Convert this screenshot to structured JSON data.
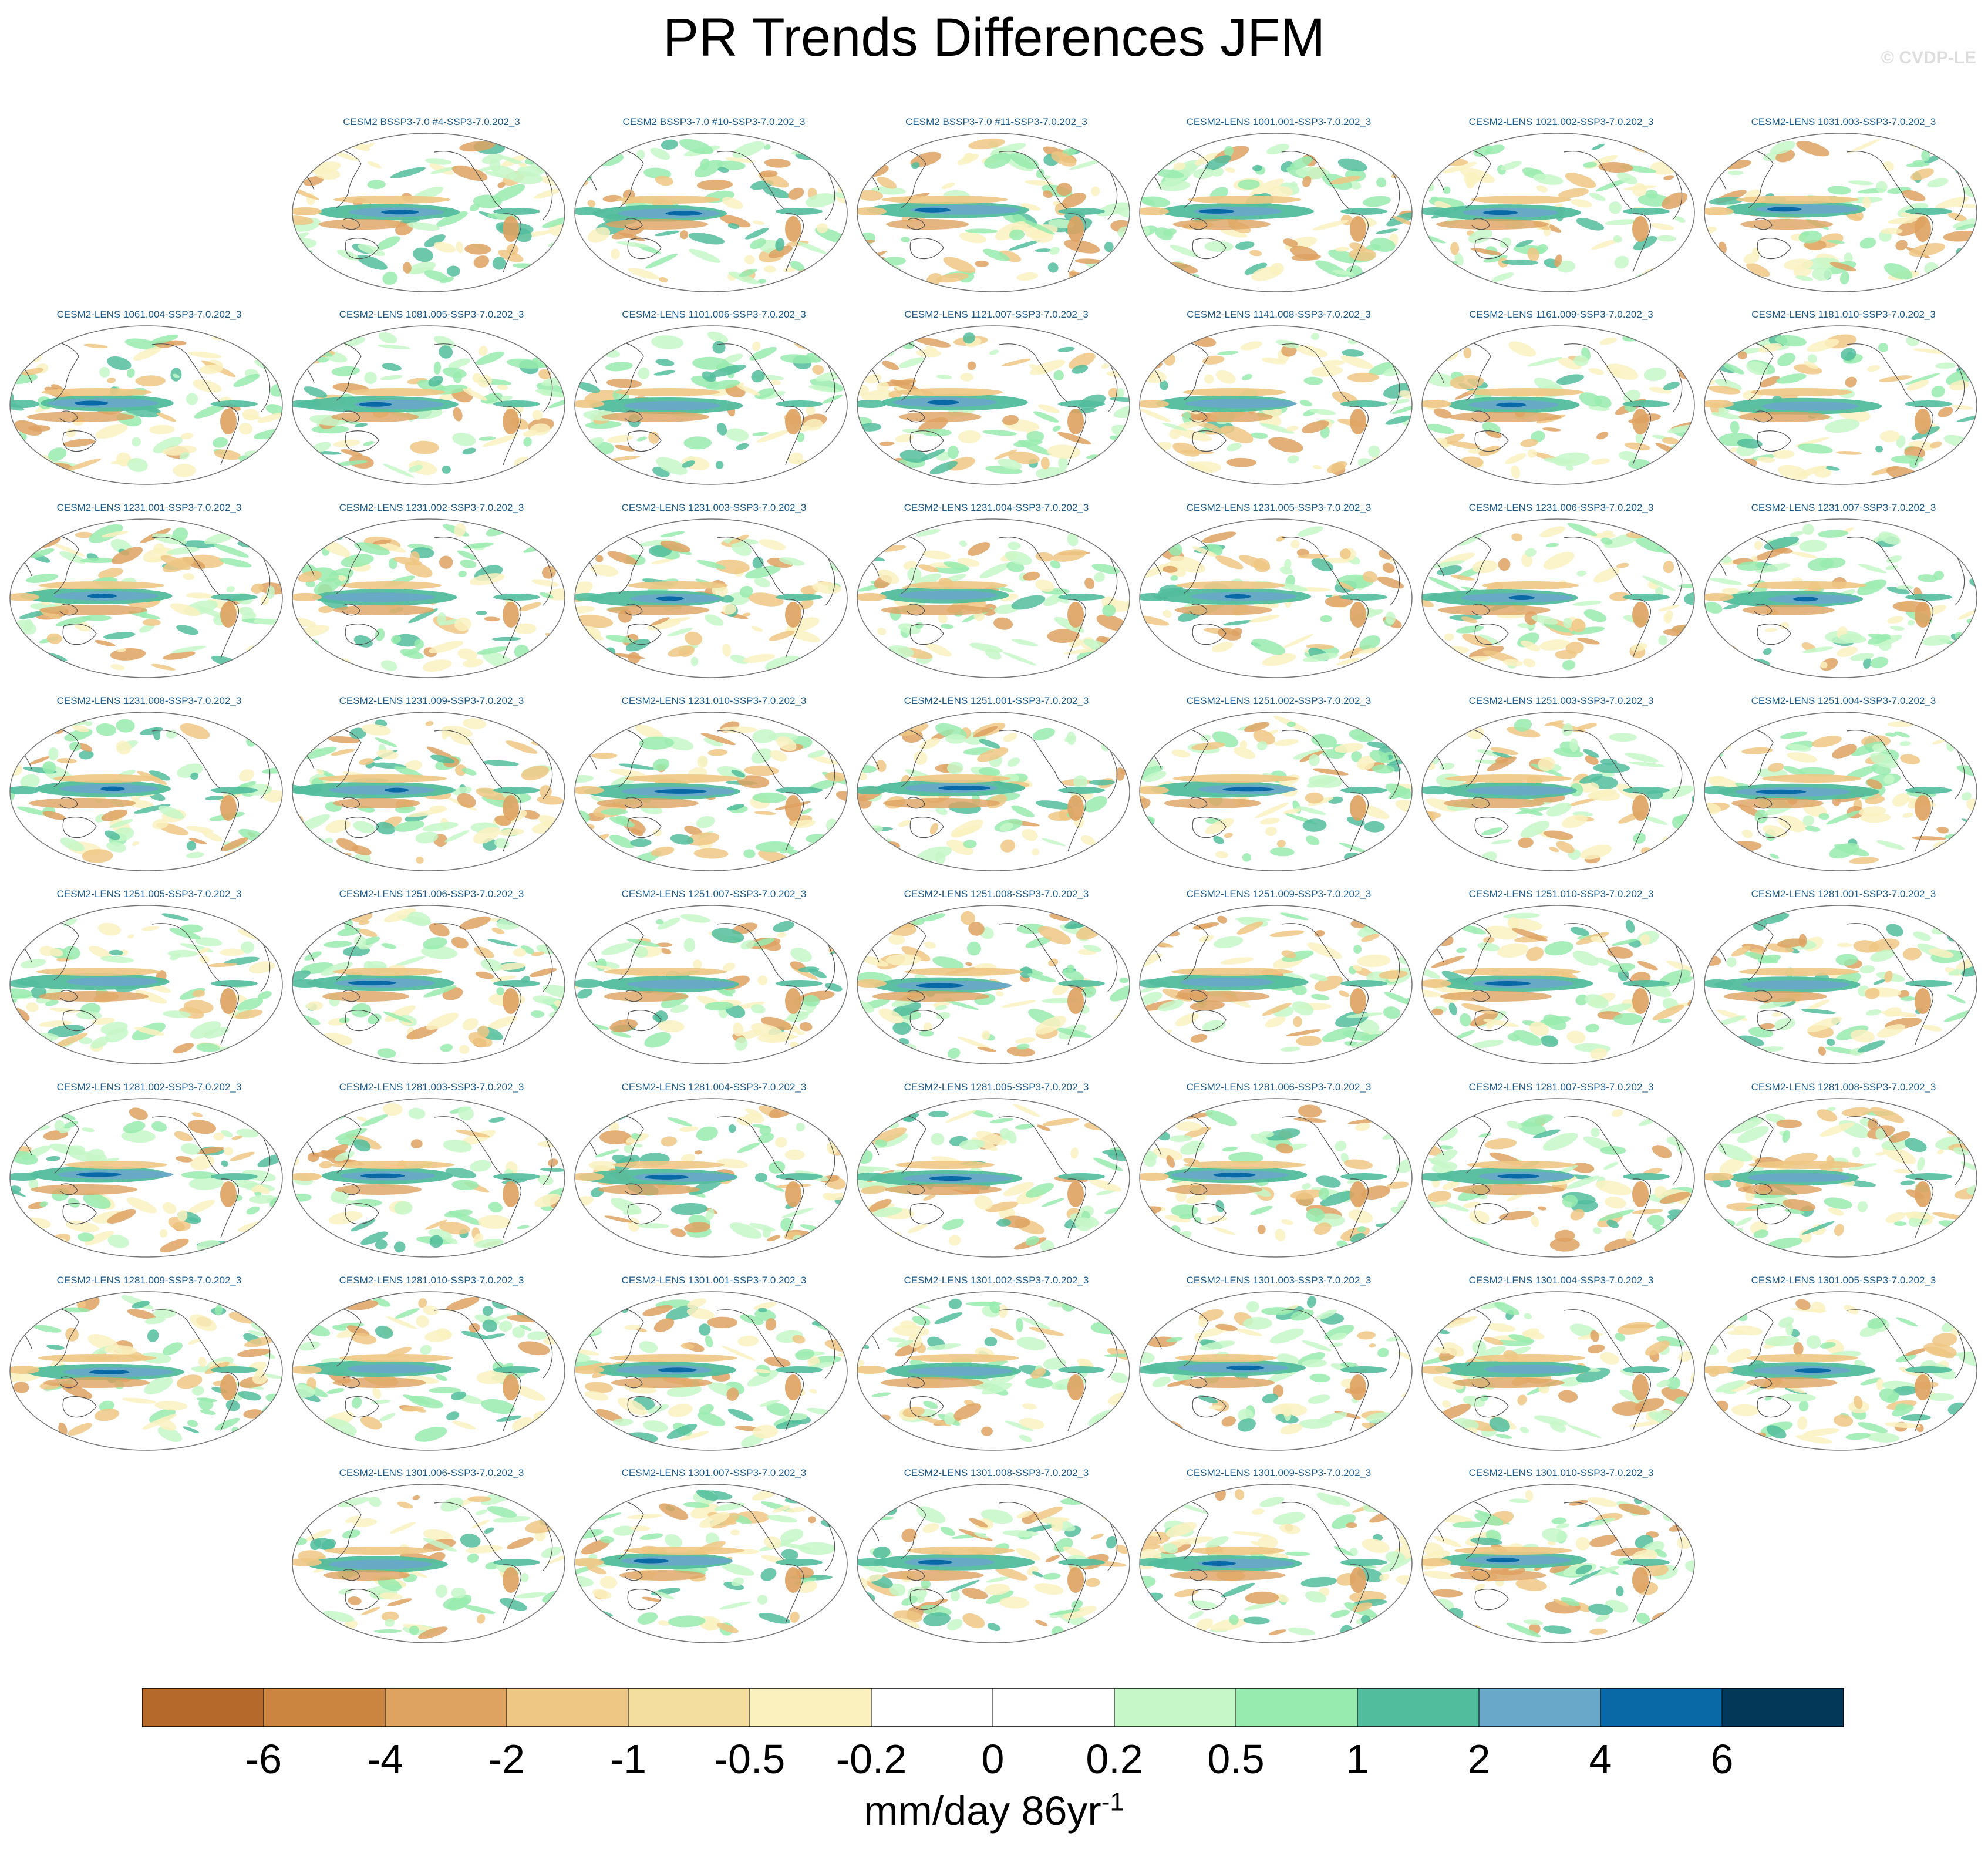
{
  "title": "PR Trends Differences JFM",
  "copyright": "© CVDP-LE",
  "panels": [
    "CESM2 BSSP3-7.0 #4-SSP3-7.0.202_3",
    "CESM2 BSSP3-7.0 #10-SSP3-7.0.202_3",
    "CESM2 BSSP3-7.0 #11-SSP3-7.0.202_3",
    "CESM2-LENS 1001.001-SSP3-7.0.202_3",
    "CESM2-LENS 1021.002-SSP3-7.0.202_3",
    "CESM2-LENS 1031.003-SSP3-7.0.202_3",
    "CESM2-LENS 1061.004-SSP3-7.0.202_3",
    "CESM2-LENS 1081.005-SSP3-7.0.202_3",
    "CESM2-LENS 1101.006-SSP3-7.0.202_3",
    "CESM2-LENS 1121.007-SSP3-7.0.202_3",
    "CESM2-LENS 1141.008-SSP3-7.0.202_3",
    "CESM2-LENS 1161.009-SSP3-7.0.202_3",
    "CESM2-LENS 1181.010-SSP3-7.0.202_3",
    "CESM2-LENS 1231.001-SSP3-7.0.202_3",
    "CESM2-LENS 1231.002-SSP3-7.0.202_3",
    "CESM2-LENS 1231.003-SSP3-7.0.202_3",
    "CESM2-LENS 1231.004-SSP3-7.0.202_3",
    "CESM2-LENS 1231.005-SSP3-7.0.202_3",
    "CESM2-LENS 1231.006-SSP3-7.0.202_3",
    "CESM2-LENS 1231.007-SSP3-7.0.202_3",
    "CESM2-LENS 1231.008-SSP3-7.0.202_3",
    "CESM2-LENS 1231.009-SSP3-7.0.202_3",
    "CESM2-LENS 1231.010-SSP3-7.0.202_3",
    "CESM2-LENS 1251.001-SSP3-7.0.202_3",
    "CESM2-LENS 1251.002-SSP3-7.0.202_3",
    "CESM2-LENS 1251.003-SSP3-7.0.202_3",
    "CESM2-LENS 1251.004-SSP3-7.0.202_3",
    "CESM2-LENS 1251.005-SSP3-7.0.202_3",
    "CESM2-LENS 1251.006-SSP3-7.0.202_3",
    "CESM2-LENS 1251.007-SSP3-7.0.202_3",
    "CESM2-LENS 1251.008-SSP3-7.0.202_3",
    "CESM2-LENS 1251.009-SSP3-7.0.202_3",
    "CESM2-LENS 1251.010-SSP3-7.0.202_3",
    "CESM2-LENS 1281.001-SSP3-7.0.202_3",
    "CESM2-LENS 1281.002-SSP3-7.0.202_3",
    "CESM2-LENS 1281.003-SSP3-7.0.202_3",
    "CESM2-LENS 1281.004-SSP3-7.0.202_3",
    "CESM2-LENS 1281.005-SSP3-7.0.202_3",
    "CESM2-LENS 1281.006-SSP3-7.0.202_3",
    "CESM2-LENS 1281.007-SSP3-7.0.202_3",
    "CESM2-LENS 1281.008-SSP3-7.0.202_3",
    "CESM2-LENS 1281.009-SSP3-7.0.202_3",
    "CESM2-LENS 1281.010-SSP3-7.0.202_3",
    "CESM2-LENS 1301.001-SSP3-7.0.202_3",
    "CESM2-LENS 1301.002-SSP3-7.0.202_3",
    "CESM2-LENS 1301.003-SSP3-7.0.202_3",
    "CESM2-LENS 1301.004-SSP3-7.0.202_3",
    "CESM2-LENS 1301.005-SSP3-7.0.202_3",
    "CESM2-LENS 1301.006-SSP3-7.0.202_3",
    "CESM2-LENS 1301.007-SSP3-7.0.202_3",
    "CESM2-LENS 1301.008-SSP3-7.0.202_3",
    "CESM2-LENS 1301.009-SSP3-7.0.202_3",
    "CESM2-LENS 1301.010-SSP3-7.0.202_3"
  ],
  "colorbar": {
    "labels": [
      "-6",
      "-4",
      "-2",
      "-1",
      "-0.5",
      "-0.2",
      "0",
      "0.2",
      "0.5",
      "1",
      "2",
      "4",
      "6"
    ],
    "colors": [
      "#b5692b",
      "#cc8540",
      "#dea261",
      "#eec784",
      "#f3dd9f",
      "#faf1bf",
      "#ffffff",
      "#ffffff",
      "#c6f7c8",
      "#98ebae",
      "#52bd9c",
      "#69a8c8",
      "#0869a6",
      "#043859"
    ],
    "unit_main": "mm/day 86yr",
    "unit_sup": "-1"
  },
  "map_style": {
    "pos_light": "#c6f7c8",
    "pos_mid": "#98ebae",
    "pos_strong": "#52bd9c",
    "pos_blue": "#69a8c8",
    "pos_dark": "#0869a6",
    "neg_light": "#faf1bf",
    "neg_mid": "#eec784",
    "neg_strong": "#dea261",
    "neg_dark": "#cc8540",
    "coast": "#555555"
  }
}
